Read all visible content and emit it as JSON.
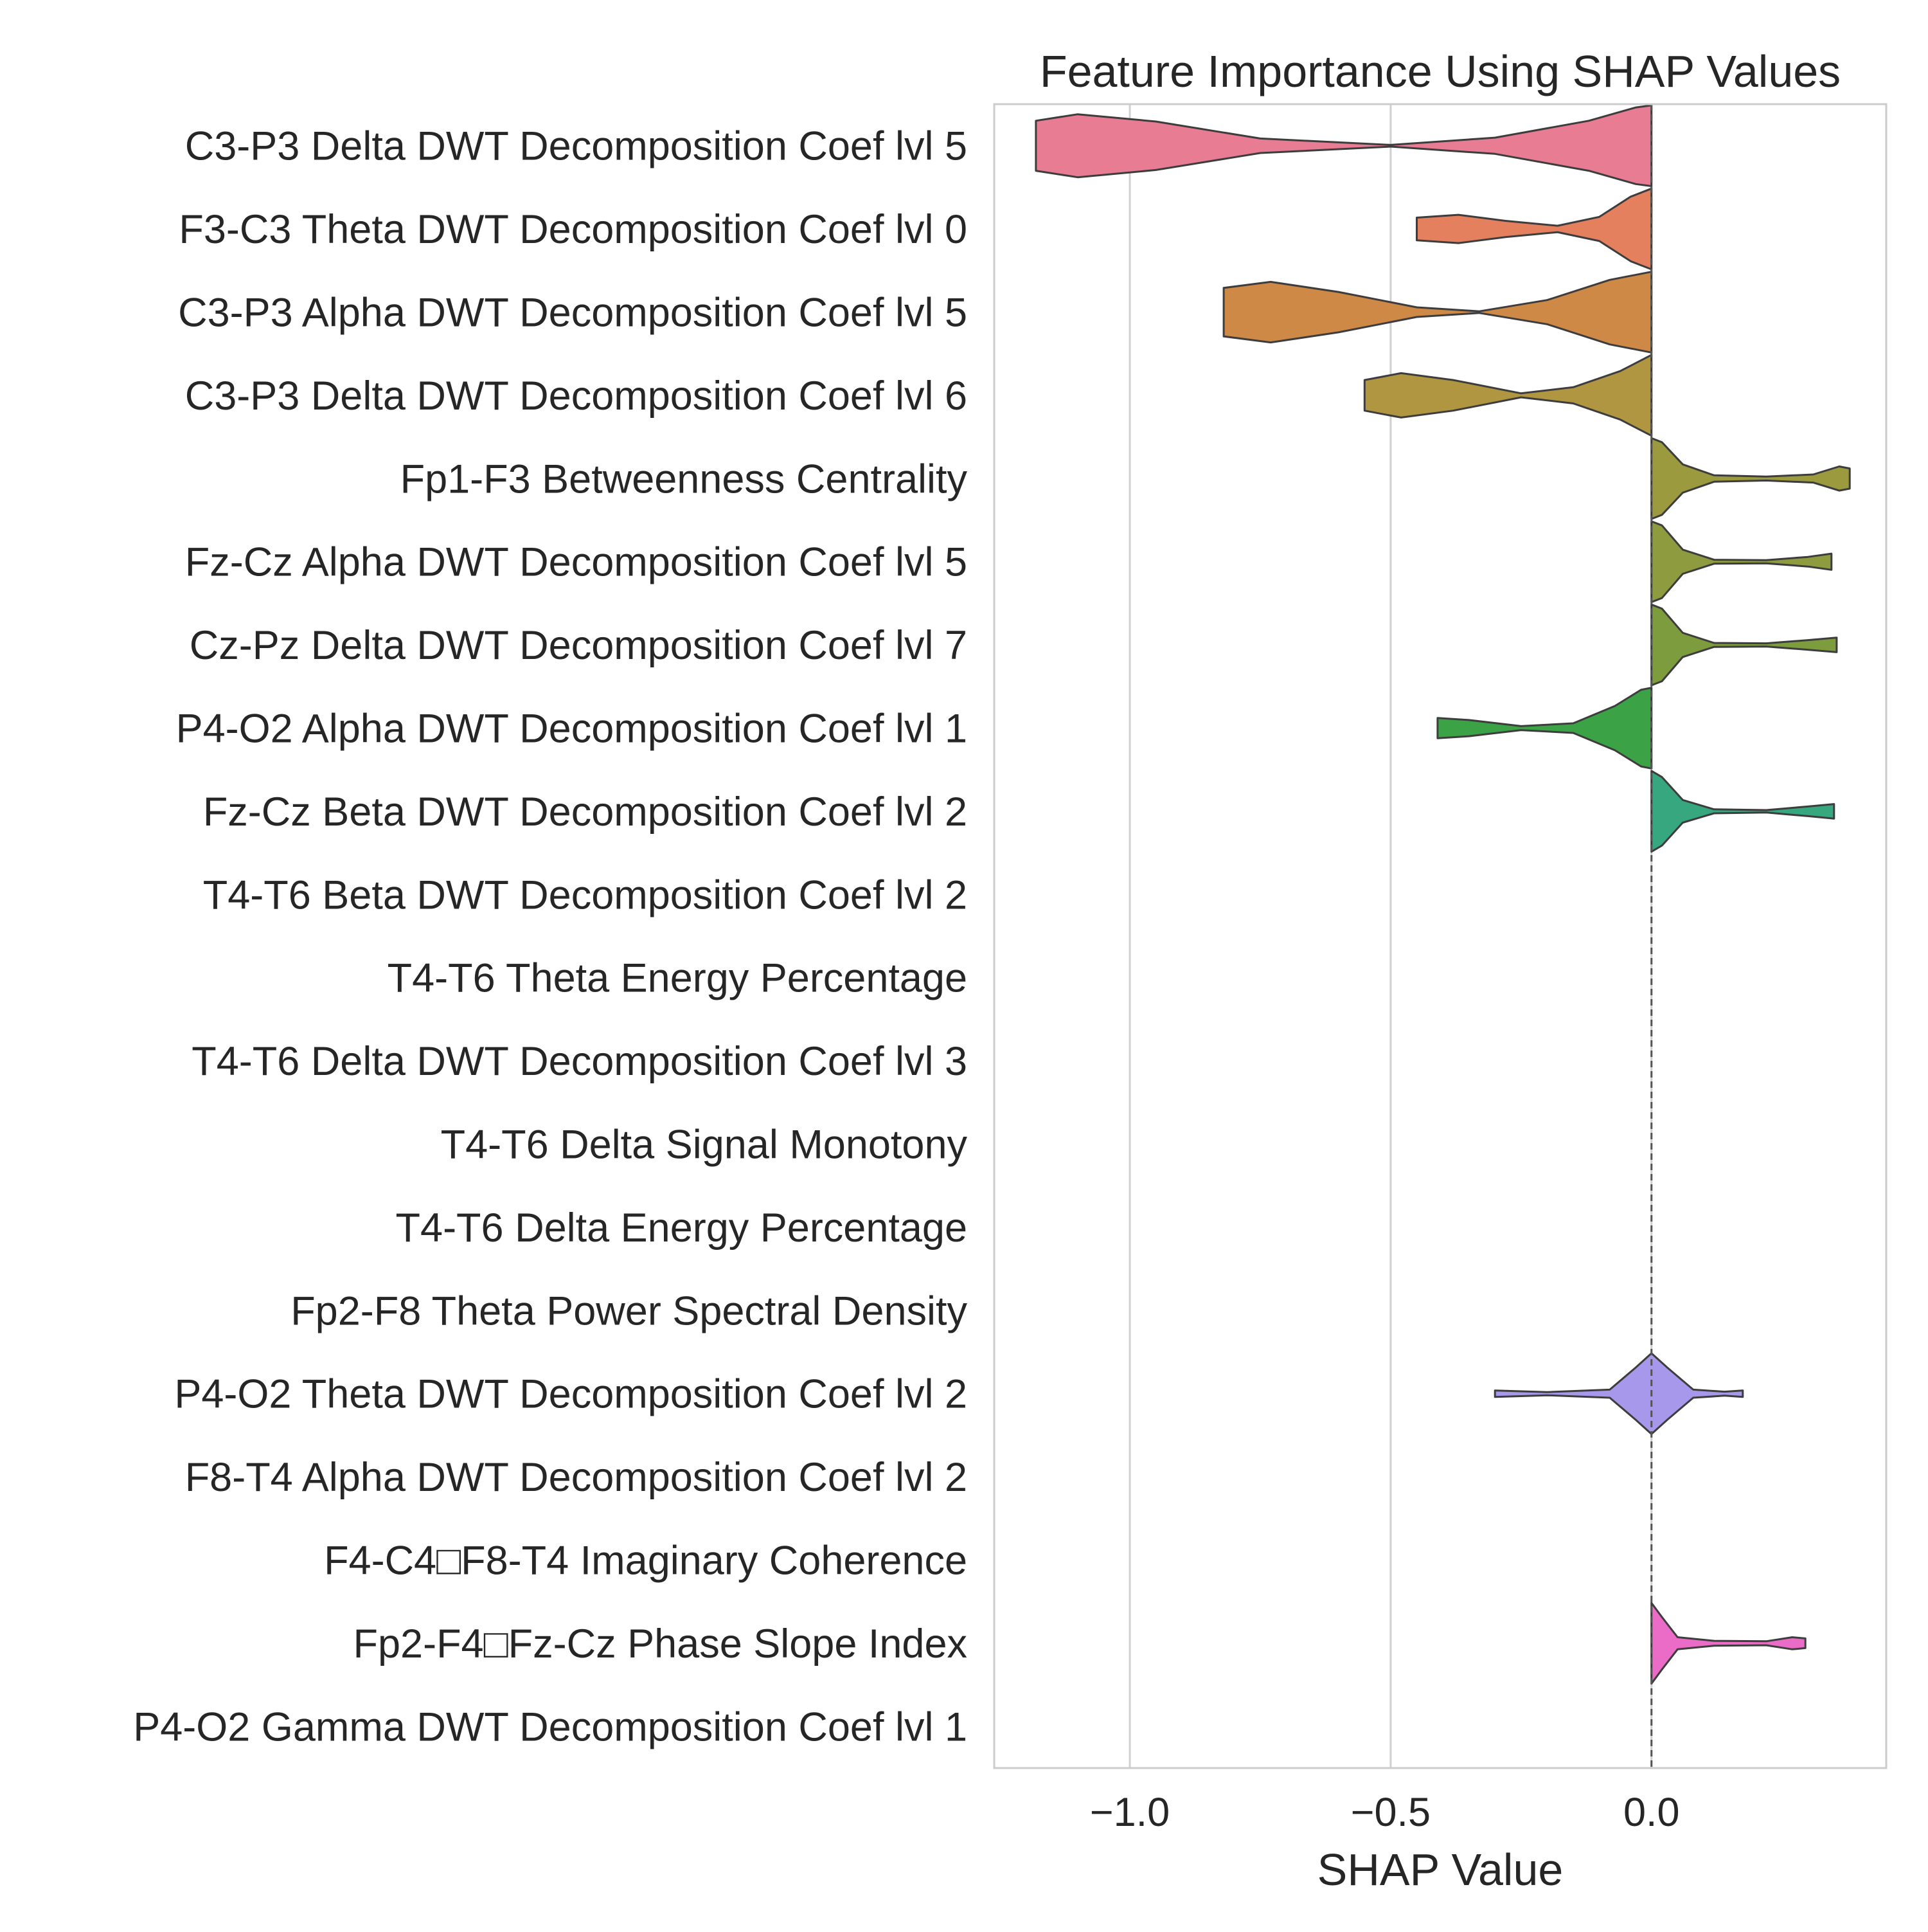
{
  "chart_data": {
    "type": "violin",
    "title": "Feature Importance Using SHAP Values",
    "xlabel": "SHAP Value",
    "ylabel": "",
    "xlim": [
      -1.26,
      0.45
    ],
    "xticks": [
      -1.0,
      -0.5,
      0.0
    ],
    "xtick_labels": [
      "−1.0",
      "−0.5",
      "0.0"
    ],
    "grid": "vertical",
    "reference_line": {
      "x": 0.0,
      "style": "dashed"
    },
    "features": [
      {
        "label": "C3-P3 Delta DWT Decomposition Coef lvl 5",
        "color": "#e87c92",
        "range": [
          -1.18,
          0.0
        ],
        "density": [
          [
            -1.18,
            0.62
          ],
          [
            -1.1,
            0.78
          ],
          [
            -0.95,
            0.6
          ],
          [
            -0.75,
            0.18
          ],
          [
            -0.5,
            0.02
          ],
          [
            -0.3,
            0.2
          ],
          [
            -0.12,
            0.62
          ],
          [
            -0.03,
            0.95
          ],
          [
            0.0,
            1.0
          ]
        ]
      },
      {
        "label": "F3-C3 Theta DWT Decomposition Coef lvl 0",
        "color": "#e5805f",
        "range": [
          -0.45,
          0.0
        ],
        "density": [
          [
            -0.45,
            0.28
          ],
          [
            -0.37,
            0.35
          ],
          [
            -0.28,
            0.2
          ],
          [
            -0.18,
            0.08
          ],
          [
            -0.1,
            0.3
          ],
          [
            -0.04,
            0.8
          ],
          [
            0.0,
            1.0
          ]
        ]
      },
      {
        "label": "C3-P3 Alpha DWT Decomposition Coef lvl 5",
        "color": "#ce8946",
        "range": [
          -0.82,
          0.0
        ],
        "density": [
          [
            -0.82,
            0.6
          ],
          [
            -0.73,
            0.75
          ],
          [
            -0.6,
            0.5
          ],
          [
            -0.45,
            0.12
          ],
          [
            -0.33,
            0.02
          ],
          [
            -0.2,
            0.3
          ],
          [
            -0.08,
            0.8
          ],
          [
            0.0,
            1.0
          ]
        ]
      },
      {
        "label": "C3-P3 Delta DWT Decomposition Coef lvl 6",
        "color": "#b19642",
        "range": [
          -0.55,
          0.0
        ],
        "density": [
          [
            -0.55,
            0.38
          ],
          [
            -0.48,
            0.55
          ],
          [
            -0.38,
            0.38
          ],
          [
            -0.25,
            0.05
          ],
          [
            -0.15,
            0.2
          ],
          [
            -0.06,
            0.6
          ],
          [
            0.0,
            1.0
          ]
        ]
      },
      {
        "label": "Fp1-F3 Betweenness Centrality",
        "color": "#9c9a3e",
        "range": [
          0.0,
          0.38
        ],
        "density": [
          [
            0.0,
            1.0
          ],
          [
            0.02,
            0.9
          ],
          [
            0.06,
            0.35
          ],
          [
            0.12,
            0.08
          ],
          [
            0.22,
            0.05
          ],
          [
            0.31,
            0.1
          ],
          [
            0.36,
            0.3
          ],
          [
            0.38,
            0.25
          ]
        ]
      },
      {
        "label": "Fz-Cz Alpha DWT Decomposition Coef lvl 5",
        "color": "#8e9b3f",
        "range": [
          0.0,
          0.345
        ],
        "density": [
          [
            0.0,
            1.0
          ],
          [
            0.02,
            0.9
          ],
          [
            0.06,
            0.3
          ],
          [
            0.12,
            0.05
          ],
          [
            0.22,
            0.04
          ],
          [
            0.3,
            0.12
          ],
          [
            0.345,
            0.2
          ]
        ]
      },
      {
        "label": "Cz-Pz Delta DWT Decomposition Coef lvl 7",
        "color": "#7c9c3d",
        "range": [
          0.0,
          0.355
        ],
        "density": [
          [
            0.0,
            1.0
          ],
          [
            0.02,
            0.9
          ],
          [
            0.06,
            0.3
          ],
          [
            0.12,
            0.05
          ],
          [
            0.22,
            0.04
          ],
          [
            0.3,
            0.12
          ],
          [
            0.355,
            0.18
          ]
        ]
      },
      {
        "label": "P4-O2 Alpha DWT Decomposition Coef lvl 1",
        "color": "#3ba345",
        "range": [
          -0.41,
          0.0
        ],
        "density": [
          [
            -0.41,
            0.25
          ],
          [
            -0.35,
            0.2
          ],
          [
            -0.25,
            0.05
          ],
          [
            -0.15,
            0.12
          ],
          [
            -0.07,
            0.55
          ],
          [
            -0.02,
            0.95
          ],
          [
            0.0,
            1.0
          ]
        ]
      },
      {
        "label": "Fz-Cz Beta DWT Decomposition Coef lvl 2",
        "color": "#36a77e",
        "range": [
          0.0,
          0.35
        ],
        "density": [
          [
            0.0,
            1.0
          ],
          [
            0.02,
            0.85
          ],
          [
            0.06,
            0.28
          ],
          [
            0.12,
            0.05
          ],
          [
            0.22,
            0.03
          ],
          [
            0.3,
            0.12
          ],
          [
            0.35,
            0.18
          ]
        ]
      },
      {
        "label": "T4-T6 Beta DWT Decomposition Coef lvl 2",
        "color": "#38a69b",
        "range": [
          0.0,
          0.0
        ],
        "density": []
      },
      {
        "label": "T4-T6 Theta Energy Percentage",
        "color": "#3aa5ab",
        "range": [
          0.0,
          0.0
        ],
        "density": []
      },
      {
        "label": "T4-T6 Delta DWT Decomposition Coef lvl 3",
        "color": "#3ca3bc",
        "range": [
          0.0,
          0.0
        ],
        "density": []
      },
      {
        "label": "T4-T6 Delta Signal Monotony",
        "color": "#40a0d2",
        "range": [
          0.0,
          0.0
        ],
        "density": []
      },
      {
        "label": "T4-T6 Delta Energy Percentage",
        "color": "#6b9de6",
        "range": [
          0.0,
          0.0
        ],
        "density": []
      },
      {
        "label": "Fp2-F8 Theta Power Spectral Density",
        "color": "#8f96ec",
        "range": [
          0.0,
          0.0
        ],
        "density": []
      },
      {
        "label": "P4-O2 Theta DWT Decomposition Coef lvl 2",
        "color": "#a898ec",
        "range": [
          -0.3,
          0.175
        ],
        "density": [
          [
            -0.3,
            0.08
          ],
          [
            -0.2,
            0.04
          ],
          [
            -0.08,
            0.1
          ],
          [
            -0.03,
            0.65
          ],
          [
            0.0,
            1.0
          ],
          [
            0.03,
            0.65
          ],
          [
            0.08,
            0.1
          ],
          [
            0.14,
            0.05
          ],
          [
            0.175,
            0.08
          ]
        ]
      },
      {
        "label": "F8-T4 Alpha DWT Decomposition Coef lvl 2",
        "color": "#c790e8",
        "range": [
          0.0,
          0.0
        ],
        "density": []
      },
      {
        "label": "F4-C4□F8-T4 Imaginary Coherence",
        "color": "#de86dc",
        "range": [
          0.0,
          0.0
        ],
        "density": []
      },
      {
        "label": "Fp2-F4□Fz-Cz Phase Slope Index",
        "color": "#eb6cc6",
        "range": [
          0.0,
          0.295
        ],
        "density": [
          [
            0.0,
            1.0
          ],
          [
            0.02,
            0.65
          ],
          [
            0.05,
            0.15
          ],
          [
            0.12,
            0.06
          ],
          [
            0.22,
            0.05
          ],
          [
            0.27,
            0.15
          ],
          [
            0.295,
            0.12
          ]
        ]
      },
      {
        "label": "P4-O2 Gamma DWT Decomposition Coef lvl 1",
        "color": "#ee7aa8",
        "range": [
          0.0,
          0.0
        ],
        "density": []
      }
    ]
  }
}
